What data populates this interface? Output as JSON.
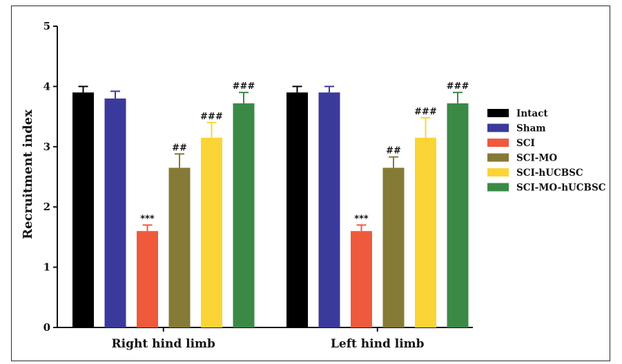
{
  "chart_data": {
    "type": "bar",
    "title": "",
    "xlabel": "",
    "ylabel": "Recruitment index",
    "ylim": [
      0,
      5
    ],
    "yticks": [
      "0",
      "1",
      "2",
      "3",
      "4",
      "5"
    ],
    "grid": false,
    "legend_position": "right",
    "categories": [
      "Right hind limb",
      "Left hind limb"
    ],
    "series": [
      {
        "name": "Intact",
        "color": "#000000",
        "values": [
          3.9,
          3.9
        ],
        "errors": [
          0.1,
          0.1
        ],
        "annotations": [
          "",
          ""
        ]
      },
      {
        "name": "Sham",
        "color": "#3a3a9c",
        "values": [
          3.8,
          3.9
        ],
        "errors": [
          0.12,
          0.1
        ],
        "annotations": [
          "",
          ""
        ]
      },
      {
        "name": "SCI",
        "color": "#ef5a3c",
        "values": [
          1.6,
          1.6
        ],
        "errors": [
          0.1,
          0.1
        ],
        "annotations": [
          "***",
          "***"
        ]
      },
      {
        "name": "SCI-MO",
        "color": "#857a36",
        "values": [
          2.65,
          2.65
        ],
        "errors": [
          0.23,
          0.18
        ],
        "annotations": [
          "##",
          "##"
        ]
      },
      {
        "name": "SCI-hUCBSC",
        "color": "#fbd535",
        "values": [
          3.15,
          3.15
        ],
        "errors": [
          0.25,
          0.33
        ],
        "annotations": [
          "###",
          "###"
        ]
      },
      {
        "name": "SCI-MO-hUCBSC",
        "color": "#3a8a46",
        "values": [
          3.72,
          3.72
        ],
        "errors": [
          0.18,
          0.18
        ],
        "annotations": [
          "###",
          "###"
        ]
      }
    ]
  }
}
